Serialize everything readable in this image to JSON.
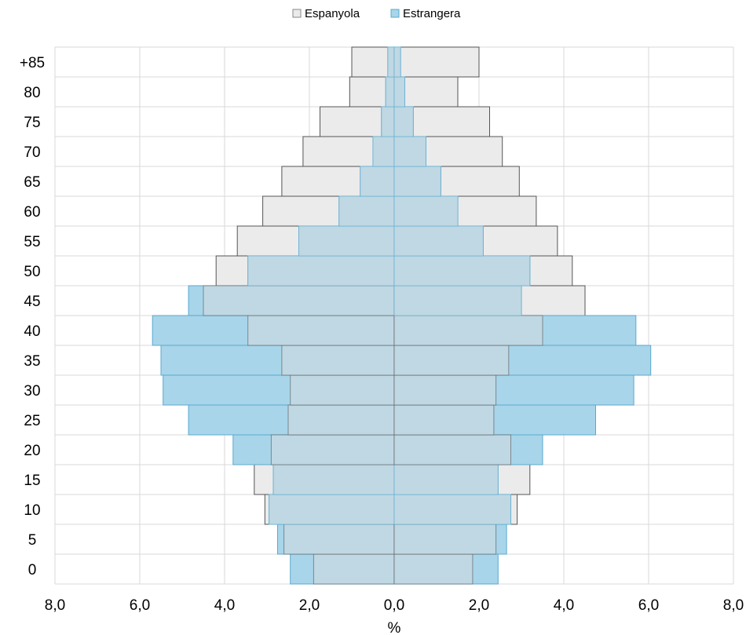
{
  "chart_data": {
    "type": "bar",
    "orientation": "horizontal",
    "layout": "population-pyramid",
    "categories": [
      "0",
      "5",
      "10",
      "15",
      "20",
      "25",
      "30",
      "35",
      "40",
      "45",
      "50",
      "55",
      "60",
      "65",
      "70",
      "75",
      "80",
      "+85"
    ],
    "series": [
      {
        "name": "Espanyola",
        "color": "#ebebeb",
        "stroke": "#555555",
        "left_values": [
          1.9,
          2.6,
          3.05,
          3.3,
          2.9,
          2.5,
          2.45,
          2.65,
          3.45,
          4.5,
          4.2,
          3.7,
          3.1,
          2.65,
          2.15,
          1.75,
          1.05,
          1.0
        ],
        "right_values": [
          1.85,
          2.4,
          2.9,
          3.2,
          2.75,
          2.35,
          2.4,
          2.7,
          3.5,
          4.5,
          4.2,
          3.85,
          3.35,
          2.95,
          2.55,
          2.25,
          1.5,
          2.0
        ]
      },
      {
        "name": "Estrangera",
        "color": "#a8d5ea",
        "stroke": "#5aa9cf",
        "left_values": [
          2.45,
          2.75,
          2.95,
          2.85,
          3.8,
          4.85,
          5.45,
          5.5,
          5.7,
          4.85,
          3.45,
          2.25,
          1.3,
          0.8,
          0.5,
          0.3,
          0.2,
          0.15
        ],
        "right_values": [
          2.45,
          2.65,
          2.75,
          2.45,
          3.5,
          4.75,
          5.65,
          6.05,
          5.7,
          3.0,
          3.2,
          2.1,
          1.5,
          1.1,
          0.75,
          0.45,
          0.25,
          0.15
        ]
      }
    ],
    "overlap_color": "#bfd8e3",
    "xlabel": "%",
    "xlim": [
      -8,
      8
    ],
    "x_ticks": [
      -8,
      -6,
      -4,
      -2,
      0,
      2,
      4,
      6,
      8
    ],
    "x_tick_labels": [
      "8,0",
      "6,0",
      "4,0",
      "2,0",
      "0,0",
      "2,0",
      "4,0",
      "6,0",
      "8,0"
    ],
    "grid": true,
    "legend_position": "top-center"
  }
}
